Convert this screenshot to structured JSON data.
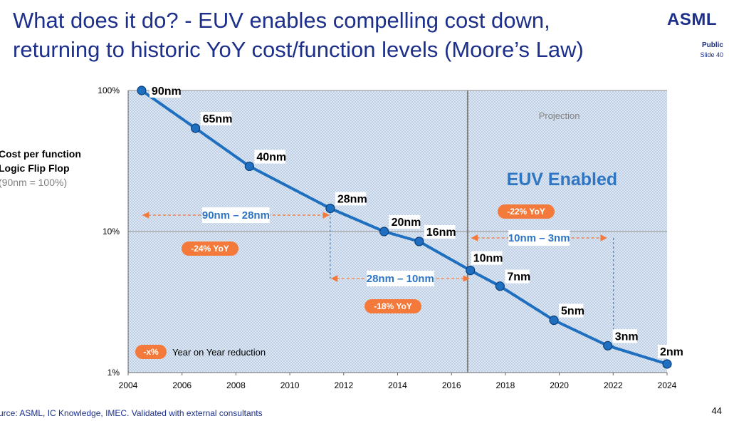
{
  "header": {
    "title_line1": "What does it do? - EUV enables compelling cost down,",
    "title_line2": "returning to historic YoY cost/function levels (Moore’s Law)",
    "logo": "ASML",
    "classification": "Public",
    "slide": "Slide 40"
  },
  "y_axis_label": {
    "line1": "Cost per function",
    "line2": "Logic Flip Flop",
    "line3": "(90nm = 100%)"
  },
  "footer": {
    "source": "urce: ASML, IC Knowledge, IMEC. Validated with external consultants",
    "page_number": "44"
  },
  "annotations": {
    "projection": "Projection",
    "euv_enabled": "EUV Enabled",
    "legend_pill": "-x%",
    "legend_text": "Year on Year  reduction",
    "ranges": [
      {
        "label": "90nm – 28nm",
        "from_year": 2004.5,
        "to_year": 2011.5
      },
      {
        "label": "28nm – 10nm",
        "from_year": 2011.5,
        "to_year": 2016.7
      },
      {
        "label": "10nm – 3nm",
        "from_year": 2016.7,
        "to_year": 2021.8
      }
    ],
    "yoy": [
      {
        "label": "-24% YoY",
        "year": 2006.5,
        "value": 5.9
      },
      {
        "label": "-18% YoY",
        "year": 2013.6,
        "value": 1.8
      },
      {
        "label": "-22% YoY",
        "year": 2017.8,
        "value": 14.7
      }
    ]
  },
  "colors": {
    "line": "#1f6fc0",
    "marker": "#1f6fc0",
    "plot_bg": "#dde8f4",
    "pill": "#f47a3c",
    "arrow": "#f47a3c",
    "divider": "#808080"
  },
  "chart_data": {
    "type": "line",
    "title": "",
    "xlabel": "",
    "ylabel": "Cost per function Logic Flip Flop (90nm = 100%)",
    "y_scale": "log",
    "xlim": [
      2004,
      2024
    ],
    "ylim": [
      1,
      100
    ],
    "x_ticks": [
      "2004",
      "2006",
      "2008",
      "2010",
      "2012",
      "2014",
      "2016",
      "2018",
      "2020",
      "2022",
      "2024"
    ],
    "y_ticks": [
      {
        "value": 1,
        "label": "1%"
      },
      {
        "value": 10,
        "label": "10%"
      },
      {
        "value": 100,
        "label": "100%"
      }
    ],
    "projection_start_year": 2016.6,
    "series": [
      {
        "name": "Cost per function",
        "points": [
          {
            "node": "90nm",
            "year": 2004.5,
            "value": 100
          },
          {
            "node": "65nm",
            "year": 2006.5,
            "value": 54
          },
          {
            "node": "40nm",
            "year": 2008.5,
            "value": 29
          },
          {
            "node": "28nm",
            "year": 2011.5,
            "value": 14.6
          },
          {
            "node": "20nm",
            "year": 2013.5,
            "value": 10.0
          },
          {
            "node": "16nm",
            "year": 2014.8,
            "value": 8.5
          },
          {
            "node": "10nm",
            "year": 2016.7,
            "value": 5.3
          },
          {
            "node": "7nm",
            "year": 2017.8,
            "value": 4.1
          },
          {
            "node": "5nm",
            "year": 2019.8,
            "value": 2.35
          },
          {
            "node": "3nm",
            "year": 2021.8,
            "value": 1.55
          },
          {
            "node": "2nm",
            "year": 2024.0,
            "value": 1.15
          }
        ]
      }
    ]
  }
}
